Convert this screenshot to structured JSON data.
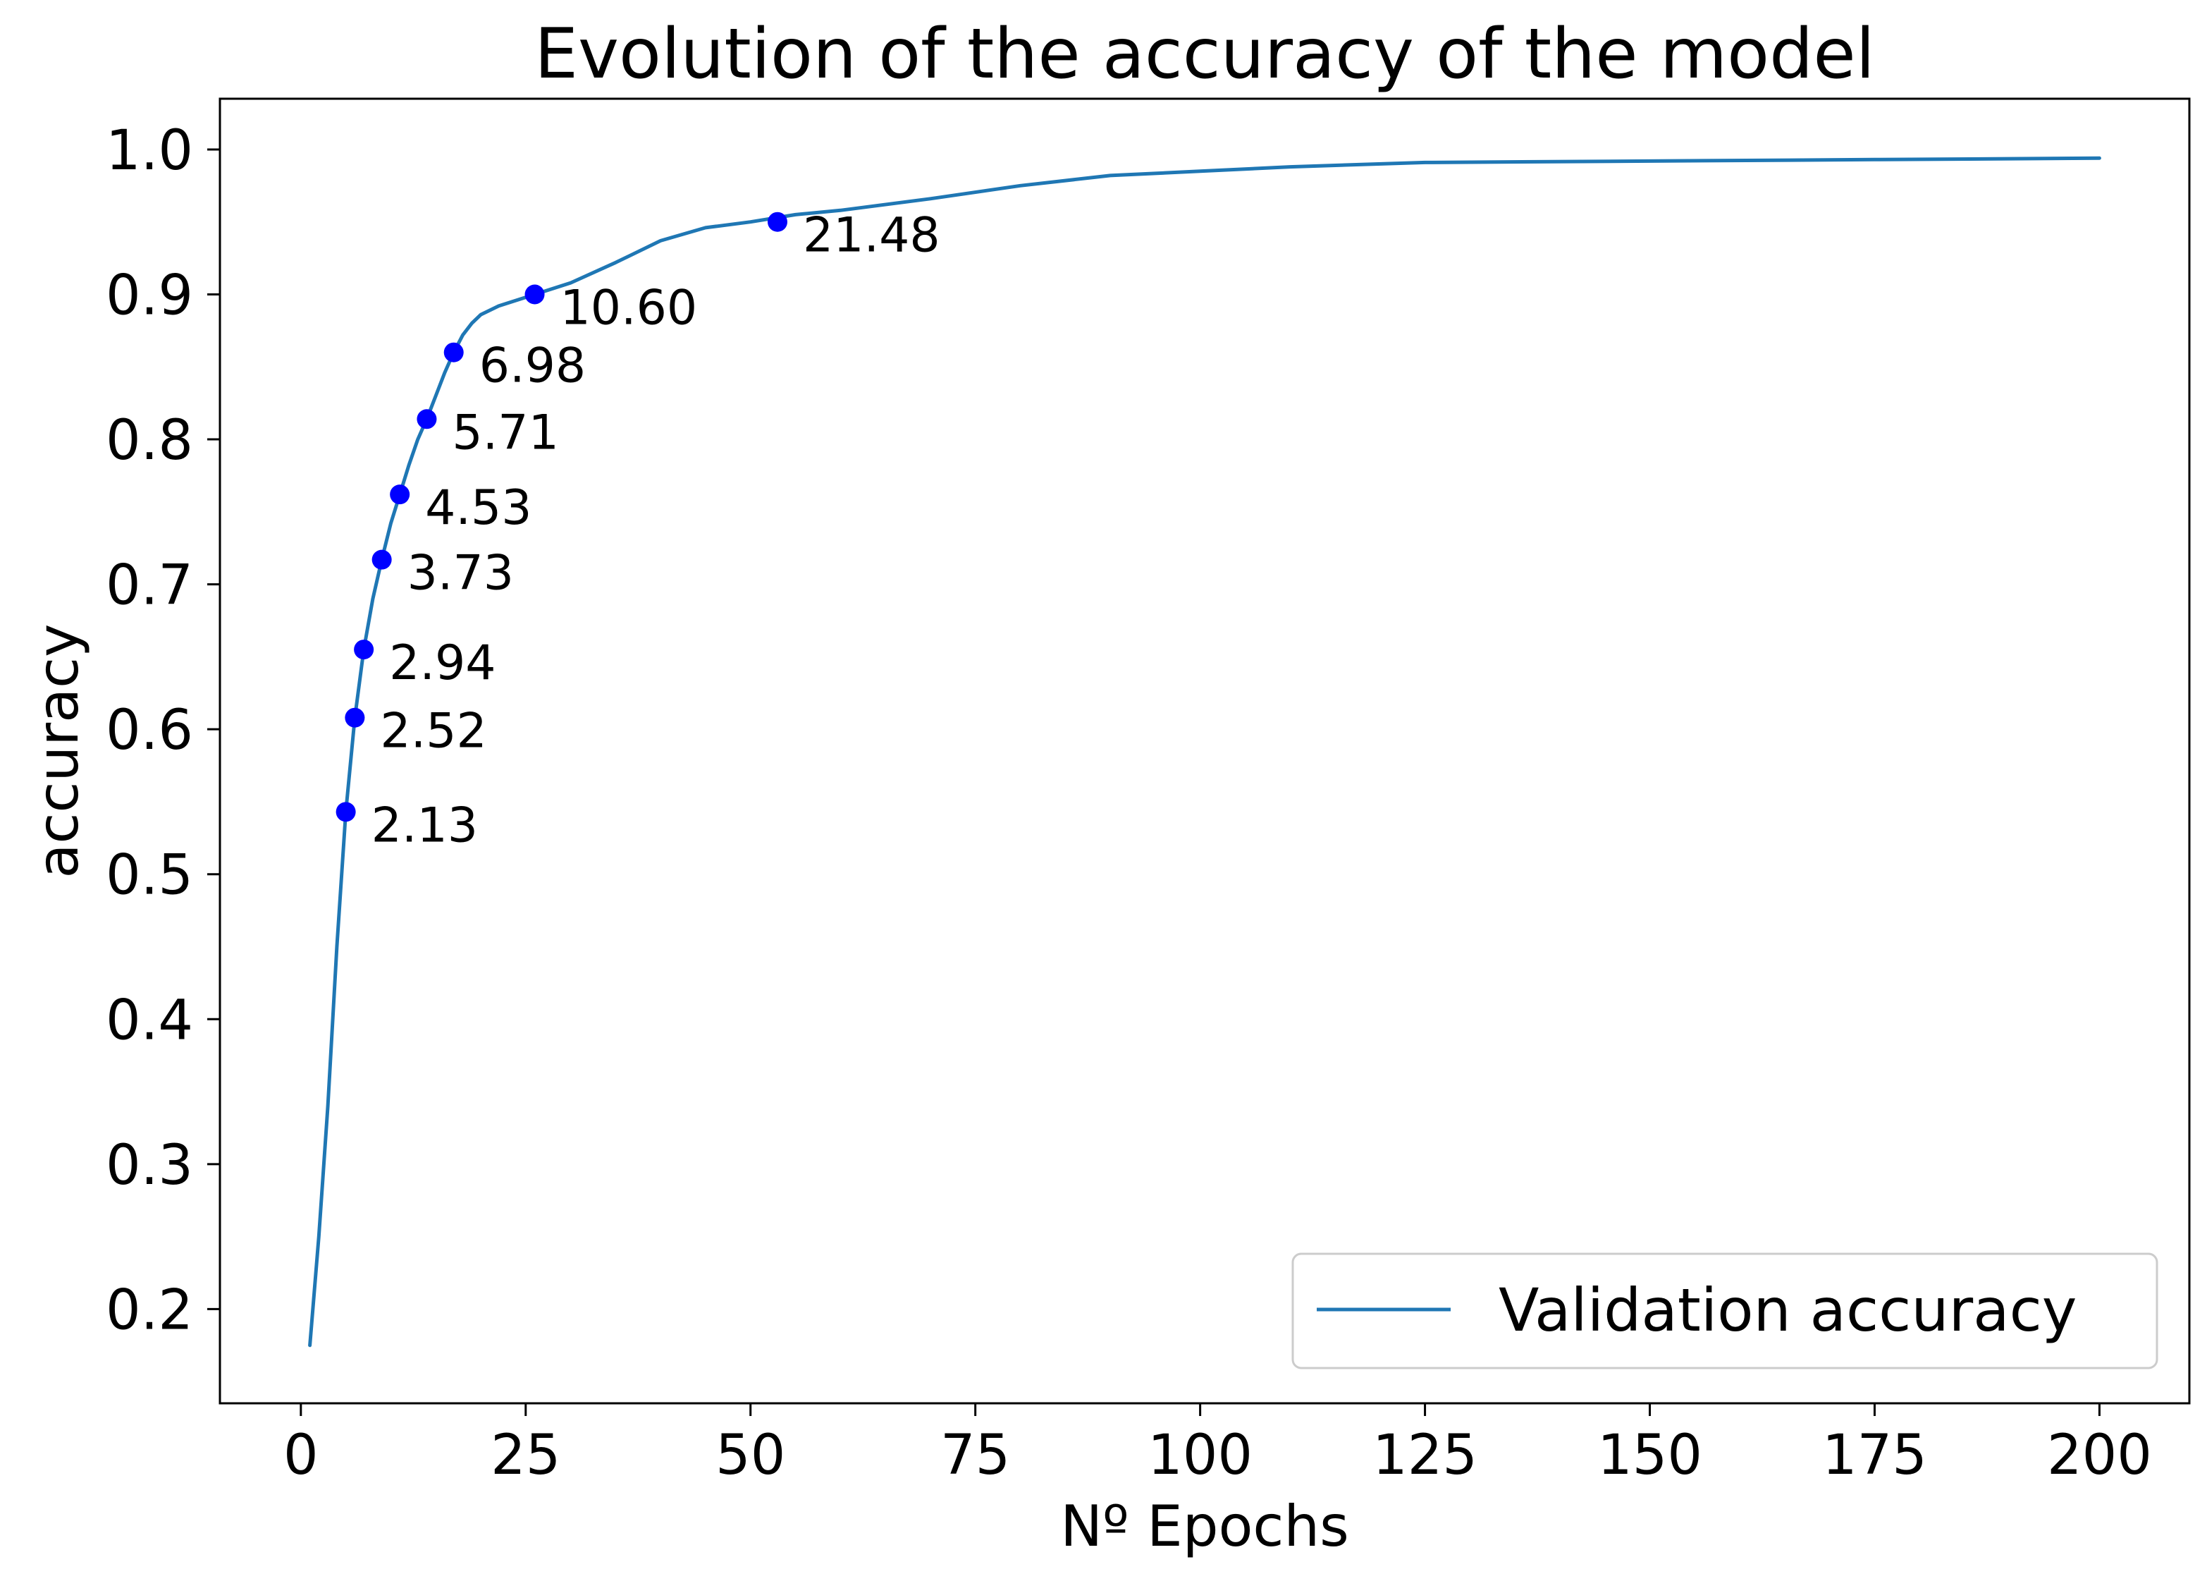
{
  "chart_data": {
    "type": "line",
    "title": "Evolution of the accuracy of the model",
    "xlabel": "Nº Epochs",
    "ylabel": "accuracy",
    "xlim": [
      -9,
      210
    ],
    "ylim": [
      0.135,
      1.035
    ],
    "xticks": [
      0,
      25,
      50,
      75,
      100,
      125,
      150,
      175,
      200
    ],
    "yticks": [
      0.2,
      0.3,
      0.4,
      0.5,
      0.6,
      0.7,
      0.8,
      0.9,
      1.0
    ],
    "ytick_labels": [
      "0.2",
      "0.3",
      "0.4",
      "0.5",
      "0.6",
      "0.7",
      "0.8",
      "0.9",
      "1.0"
    ],
    "grid": false,
    "legend": {
      "placement": "lower-right",
      "entries": [
        "Validation accuracy"
      ]
    },
    "series": [
      {
        "name": "Validation accuracy",
        "color": "#1f77b4",
        "x": [
          1,
          2,
          3,
          4,
          5,
          6,
          7,
          8,
          9,
          10,
          11,
          12,
          13,
          14,
          15,
          16,
          17,
          18,
          19,
          20,
          22,
          25,
          30,
          35,
          40,
          45,
          50,
          55,
          60,
          70,
          80,
          90,
          100,
          110,
          125,
          150,
          175,
          200
        ],
        "y": [
          0.175,
          0.25,
          0.34,
          0.45,
          0.543,
          0.608,
          0.655,
          0.69,
          0.717,
          0.742,
          0.762,
          0.782,
          0.8,
          0.814,
          0.83,
          0.846,
          0.86,
          0.872,
          0.88,
          0.886,
          0.892,
          0.898,
          0.908,
          0.922,
          0.937,
          0.946,
          0.95,
          0.955,
          0.958,
          0.966,
          0.975,
          0.982,
          0.985,
          0.988,
          0.991,
          0.992,
          0.993,
          0.994
        ]
      }
    ],
    "markers": {
      "color": "#0000ff",
      "points": [
        {
          "x": 5,
          "y": 0.543,
          "label": "2.13"
        },
        {
          "x": 6,
          "y": 0.608,
          "label": "2.52"
        },
        {
          "x": 7,
          "y": 0.655,
          "label": "2.94"
        },
        {
          "x": 9,
          "y": 0.717,
          "label": "3.73"
        },
        {
          "x": 11,
          "y": 0.762,
          "label": "4.53"
        },
        {
          "x": 14,
          "y": 0.814,
          "label": "5.71"
        },
        {
          "x": 17,
          "y": 0.86,
          "label": "6.98"
        },
        {
          "x": 26,
          "y": 0.9,
          "label": "10.60"
        },
        {
          "x": 53,
          "y": 0.95,
          "label": "21.48"
        }
      ]
    }
  }
}
